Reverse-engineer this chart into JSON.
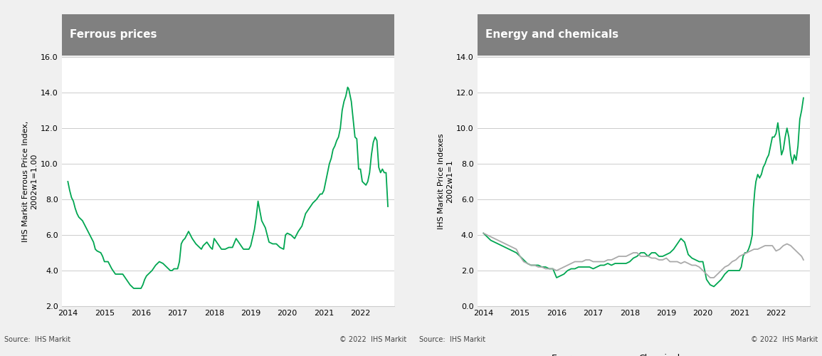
{
  "title1": "Ferrous prices",
  "title2": "Energy and chemicals",
  "ylabel1": "IHS Markit Ferrous Price Index,\n2002w1=1.00",
  "ylabel2": "IHS Markit Price Indexes\n2002w1=1",
  "source_text": "Source:  IHS Markit",
  "copyright_text": "© 2022  IHS Markit",
  "title_bg_color": "#808080",
  "title_text_color": "#ffffff",
  "fig_bg_color": "#f0f0f0",
  "plot_bg_color": "#ffffff",
  "ferrous_color": "#00a651",
  "energy_color": "#00a651",
  "chemicals_color": "#aaaaaa",
  "legend_energy": "Energy",
  "legend_chemicals": "Chemicals",
  "ylim1": [
    2.0,
    16.0
  ],
  "yticks1": [
    2.0,
    4.0,
    6.0,
    8.0,
    10.0,
    12.0,
    14.0,
    16.0
  ],
  "ylim2": [
    0.0,
    14.0
  ],
  "yticks2": [
    0.0,
    2.0,
    4.0,
    6.0,
    8.0,
    10.0,
    12.0,
    14.0
  ],
  "xticks": [
    2014,
    2015,
    2016,
    2017,
    2018,
    2019,
    2020,
    2021,
    2022
  ],
  "ferrous_x": [
    2014.0,
    2014.05,
    2014.1,
    2014.15,
    2014.2,
    2014.25,
    2014.3,
    2014.4,
    2014.5,
    2014.6,
    2014.7,
    2014.75,
    2014.8,
    2014.9,
    2014.95,
    2015.0,
    2015.1,
    2015.15,
    2015.2,
    2015.3,
    2015.4,
    2015.5,
    2015.6,
    2015.7,
    2015.8,
    2015.85,
    2015.9,
    2016.0,
    2016.05,
    2016.1,
    2016.15,
    2016.2,
    2016.3,
    2016.4,
    2016.5,
    2016.6,
    2016.7,
    2016.8,
    2016.85,
    2016.9,
    2017.0,
    2017.05,
    2017.1,
    2017.15,
    2017.2,
    2017.3,
    2017.4,
    2017.5,
    2017.6,
    2017.65,
    2017.7,
    2017.8,
    2017.9,
    2017.95,
    2018.0,
    2018.1,
    2018.2,
    2018.3,
    2018.4,
    2018.5,
    2018.6,
    2018.7,
    2018.8,
    2018.9,
    2018.95,
    2019.0,
    2019.1,
    2019.15,
    2019.2,
    2019.3,
    2019.4,
    2019.5,
    2019.6,
    2019.7,
    2019.8,
    2019.9,
    2019.95,
    2020.0,
    2020.1,
    2020.2,
    2020.3,
    2020.4,
    2020.5,
    2020.6,
    2020.7,
    2020.8,
    2020.9,
    2020.95,
    2021.0,
    2021.05,
    2021.1,
    2021.15,
    2021.2,
    2021.25,
    2021.3,
    2021.35,
    2021.4,
    2021.45,
    2021.5,
    2021.55,
    2021.6,
    2021.62,
    2021.65,
    2021.68,
    2021.7,
    2021.75,
    2021.8,
    2021.85,
    2021.9,
    2021.95,
    2022.0,
    2022.05,
    2022.1,
    2022.15,
    2022.2,
    2022.25,
    2022.3,
    2022.35,
    2022.4,
    2022.45,
    2022.5,
    2022.55,
    2022.6,
    2022.65,
    2022.7,
    2022.75
  ],
  "ferrous_y": [
    9.0,
    8.5,
    8.1,
    7.9,
    7.5,
    7.2,
    7.0,
    6.8,
    6.4,
    6.0,
    5.6,
    5.2,
    5.1,
    5.0,
    4.8,
    4.5,
    4.5,
    4.3,
    4.1,
    3.8,
    3.8,
    3.8,
    3.5,
    3.2,
    3.0,
    3.0,
    3.0,
    3.0,
    3.2,
    3.5,
    3.7,
    3.8,
    4.0,
    4.3,
    4.5,
    4.4,
    4.2,
    4.0,
    4.0,
    4.1,
    4.1,
    4.5,
    5.5,
    5.7,
    5.8,
    6.2,
    5.8,
    5.5,
    5.3,
    5.2,
    5.4,
    5.6,
    5.3,
    5.2,
    5.8,
    5.5,
    5.2,
    5.2,
    5.3,
    5.3,
    5.8,
    5.5,
    5.2,
    5.2,
    5.2,
    5.4,
    6.3,
    7.0,
    7.9,
    6.8,
    6.4,
    5.6,
    5.5,
    5.5,
    5.3,
    5.2,
    6.0,
    6.1,
    6.0,
    5.8,
    6.2,
    6.5,
    7.2,
    7.5,
    7.8,
    8.0,
    8.3,
    8.3,
    8.5,
    9.0,
    9.5,
    10.0,
    10.3,
    10.8,
    11.0,
    11.3,
    11.5,
    12.0,
    13.0,
    13.5,
    13.8,
    14.0,
    14.3,
    14.2,
    14.0,
    13.5,
    12.5,
    11.5,
    11.4,
    9.7,
    9.7,
    9.0,
    8.9,
    8.8,
    9.0,
    9.5,
    10.5,
    11.2,
    11.5,
    11.3,
    9.8,
    9.5,
    9.7,
    9.5,
    9.5,
    7.6
  ],
  "energy_x": [
    2014.0,
    2014.1,
    2014.2,
    2014.3,
    2014.4,
    2014.5,
    2014.6,
    2014.7,
    2014.8,
    2014.9,
    2015.0,
    2015.1,
    2015.2,
    2015.3,
    2015.4,
    2015.5,
    2015.6,
    2015.7,
    2015.8,
    2015.9,
    2016.0,
    2016.1,
    2016.2,
    2016.3,
    2016.4,
    2016.5,
    2016.6,
    2016.7,
    2016.8,
    2016.9,
    2017.0,
    2017.1,
    2017.2,
    2017.3,
    2017.4,
    2017.5,
    2017.6,
    2017.7,
    2017.8,
    2017.9,
    2018.0,
    2018.1,
    2018.2,
    2018.3,
    2018.4,
    2018.5,
    2018.6,
    2018.7,
    2018.8,
    2018.9,
    2019.0,
    2019.1,
    2019.2,
    2019.3,
    2019.4,
    2019.5,
    2019.6,
    2019.7,
    2019.8,
    2019.9,
    2020.0,
    2020.1,
    2020.2,
    2020.3,
    2020.4,
    2020.5,
    2020.6,
    2020.7,
    2020.8,
    2020.9,
    2021.0,
    2021.05,
    2021.1,
    2021.15,
    2021.2,
    2021.25,
    2021.3,
    2021.35,
    2021.38,
    2021.4,
    2021.42,
    2021.45,
    2021.5,
    2021.55,
    2021.6,
    2021.65,
    2021.7,
    2021.75,
    2021.8,
    2021.85,
    2021.9,
    2021.95,
    2022.0,
    2022.05,
    2022.1,
    2022.15,
    2022.2,
    2022.25,
    2022.3,
    2022.35,
    2022.4,
    2022.45,
    2022.5,
    2022.55,
    2022.6,
    2022.65,
    2022.7,
    2022.75
  ],
  "energy_y": [
    4.1,
    3.9,
    3.7,
    3.6,
    3.5,
    3.4,
    3.3,
    3.2,
    3.1,
    3.0,
    2.8,
    2.6,
    2.4,
    2.3,
    2.3,
    2.3,
    2.2,
    2.2,
    2.1,
    2.1,
    1.6,
    1.7,
    1.8,
    2.0,
    2.1,
    2.1,
    2.2,
    2.2,
    2.2,
    2.2,
    2.1,
    2.2,
    2.3,
    2.3,
    2.4,
    2.3,
    2.4,
    2.4,
    2.4,
    2.4,
    2.5,
    2.7,
    2.8,
    3.0,
    3.0,
    2.8,
    3.0,
    3.0,
    2.8,
    2.8,
    2.9,
    3.0,
    3.2,
    3.5,
    3.8,
    3.6,
    2.9,
    2.7,
    2.6,
    2.5,
    2.5,
    1.5,
    1.2,
    1.1,
    1.3,
    1.5,
    1.8,
    2.0,
    2.0,
    2.0,
    2.0,
    2.2,
    2.8,
    3.0,
    3.0,
    3.2,
    3.5,
    4.0,
    5.5,
    6.0,
    6.5,
    7.0,
    7.4,
    7.2,
    7.4,
    7.8,
    8.0,
    8.3,
    8.5,
    9.0,
    9.5,
    9.5,
    9.7,
    10.3,
    9.5,
    8.5,
    8.8,
    9.5,
    10.0,
    9.5,
    8.5,
    8.0,
    8.5,
    8.2,
    9.0,
    10.5,
    11.0,
    11.7
  ],
  "chemicals_x": [
    2014.0,
    2014.1,
    2014.2,
    2014.3,
    2014.4,
    2014.5,
    2014.6,
    2014.7,
    2014.8,
    2014.9,
    2015.0,
    2015.1,
    2015.2,
    2015.3,
    2015.4,
    2015.5,
    2015.6,
    2015.7,
    2015.8,
    2015.9,
    2016.0,
    2016.1,
    2016.2,
    2016.3,
    2016.4,
    2016.5,
    2016.6,
    2016.7,
    2016.8,
    2016.9,
    2017.0,
    2017.1,
    2017.2,
    2017.3,
    2017.4,
    2017.5,
    2017.6,
    2017.7,
    2017.8,
    2017.9,
    2018.0,
    2018.1,
    2018.2,
    2018.3,
    2018.4,
    2018.5,
    2018.6,
    2018.7,
    2018.8,
    2018.9,
    2019.0,
    2019.1,
    2019.2,
    2019.3,
    2019.4,
    2019.5,
    2019.6,
    2019.7,
    2019.8,
    2019.9,
    2020.0,
    2020.1,
    2020.2,
    2020.3,
    2020.4,
    2020.5,
    2020.6,
    2020.7,
    2020.8,
    2020.9,
    2021.0,
    2021.1,
    2021.2,
    2021.3,
    2021.4,
    2021.5,
    2021.6,
    2021.7,
    2021.8,
    2021.9,
    2022.0,
    2022.1,
    2022.2,
    2022.3,
    2022.4,
    2022.5,
    2022.6,
    2022.7,
    2022.75
  ],
  "chemicals_y": [
    4.1,
    4.0,
    3.9,
    3.8,
    3.7,
    3.6,
    3.5,
    3.4,
    3.3,
    3.2,
    2.8,
    2.5,
    2.4,
    2.3,
    2.3,
    2.2,
    2.2,
    2.1,
    2.1,
    2.1,
    2.0,
    2.1,
    2.2,
    2.3,
    2.4,
    2.5,
    2.5,
    2.5,
    2.6,
    2.6,
    2.5,
    2.5,
    2.5,
    2.5,
    2.6,
    2.6,
    2.7,
    2.8,
    2.8,
    2.8,
    2.9,
    3.0,
    3.0,
    2.8,
    2.8,
    2.8,
    2.7,
    2.7,
    2.6,
    2.6,
    2.7,
    2.5,
    2.5,
    2.5,
    2.4,
    2.5,
    2.4,
    2.3,
    2.3,
    2.2,
    2.0,
    1.8,
    1.6,
    1.6,
    1.8,
    2.0,
    2.2,
    2.3,
    2.5,
    2.6,
    2.8,
    2.9,
    3.0,
    3.1,
    3.2,
    3.2,
    3.3,
    3.4,
    3.4,
    3.4,
    3.1,
    3.2,
    3.4,
    3.5,
    3.4,
    3.2,
    3.0,
    2.8,
    2.6
  ]
}
